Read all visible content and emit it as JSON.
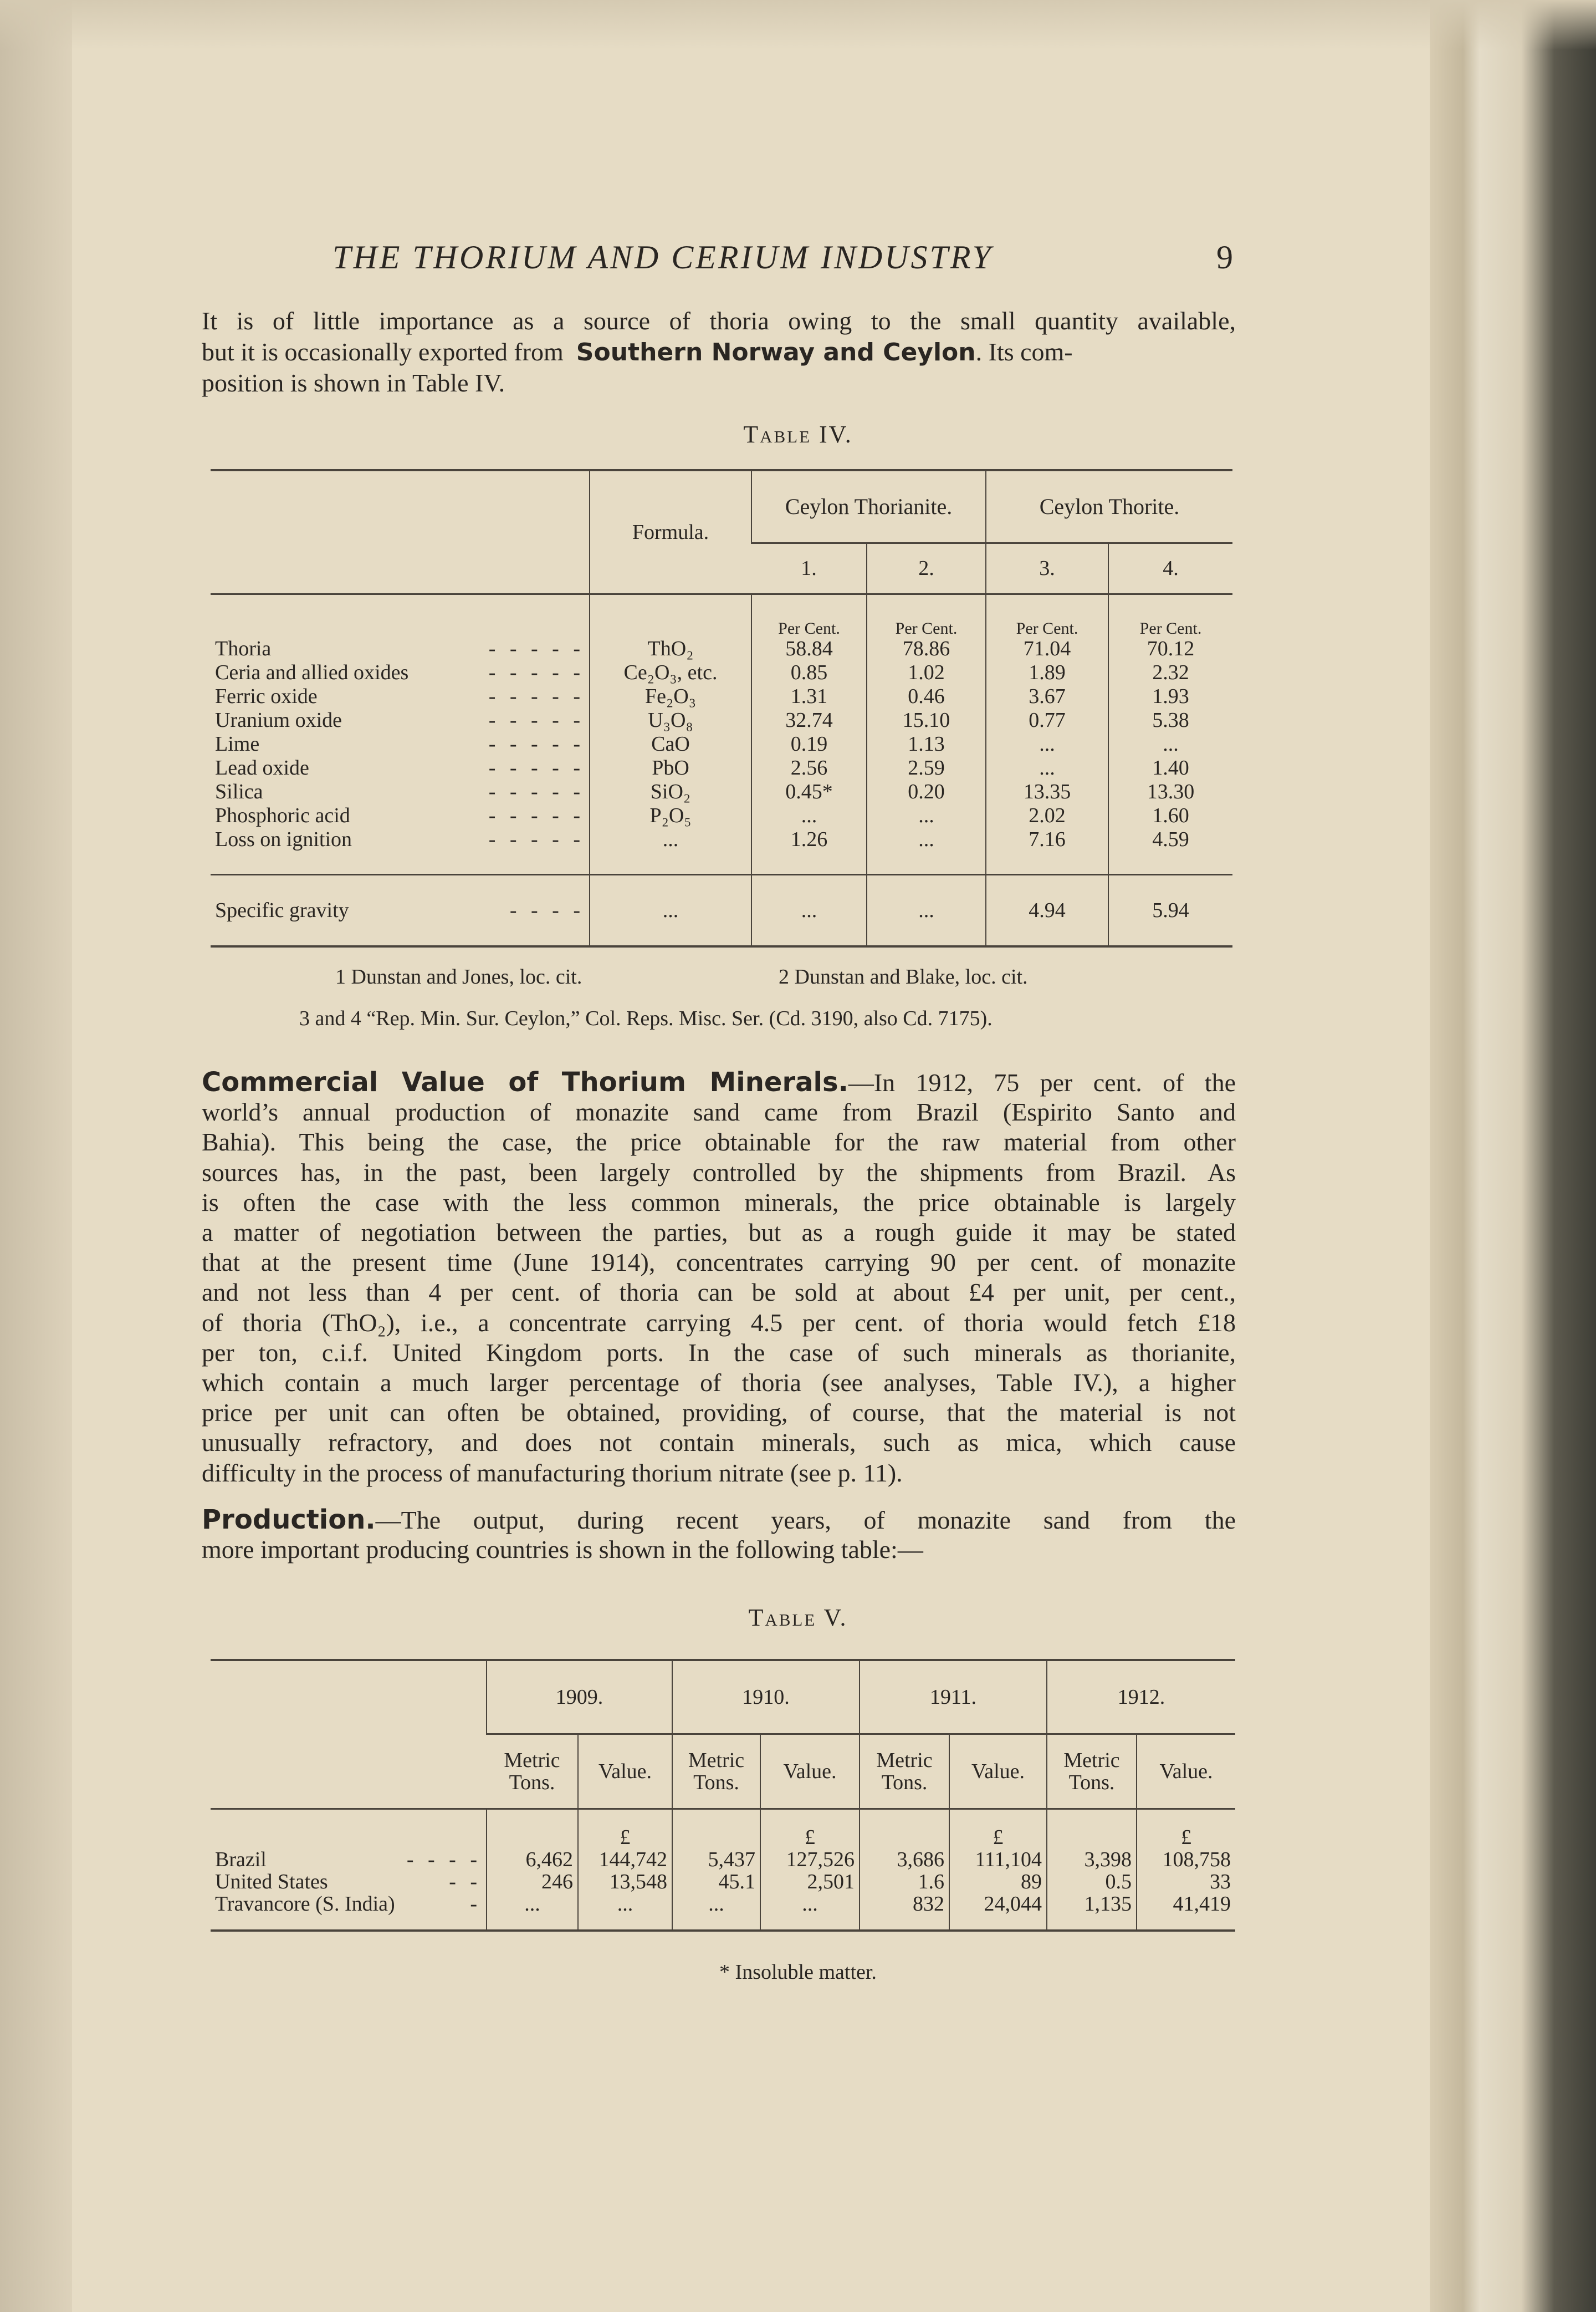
{
  "header": {
    "title": "THE THORIUM AND CERIUM INDUSTRY",
    "page_number": "9"
  },
  "intro": {
    "line1": "It is of little importance as a source of thoria owing to the small quantity available,",
    "line2_a": "but it is occasionally exported from",
    "line2_b": "Southern Norway and Ceylon",
    "line2_c": ". Its com-",
    "line3": "position is shown in Table IV."
  },
  "table4": {
    "caption": "Table IV.",
    "formula_header": "Formula.",
    "group_headers": [
      "Ceylon Thorianite.",
      "Ceylon Thorite."
    ],
    "column_numbers": [
      "1.",
      "2.",
      "3.",
      "4."
    ],
    "unit": "Per Cent.",
    "rows": [
      {
        "label": "Thoria",
        "formula": "ThO₂",
        "values": [
          "58.84",
          "78.86",
          "71.04",
          "70.12"
        ]
      },
      {
        "label": "Ceria and allied oxides",
        "formula": "Ce₂O₃, etc.",
        "values": [
          "0.85",
          "1.02",
          "1.89",
          "2.32"
        ]
      },
      {
        "label": "Ferric oxide",
        "formula": "Fe₂O₃",
        "values": [
          "1.31",
          "0.46",
          "3.67",
          "1.93"
        ]
      },
      {
        "label": "Uranium oxide",
        "formula": "U₃O₈",
        "values": [
          "32.74",
          "15.10",
          "0.77",
          "5.38"
        ]
      },
      {
        "label": "Lime",
        "formula": "CaO",
        "values": [
          "0.19",
          "1.13",
          "...",
          "..."
        ]
      },
      {
        "label": "Lead oxide",
        "formula": "PbO",
        "values": [
          "2.56",
          "2.59",
          "...",
          "1.40"
        ]
      },
      {
        "label": "Silica",
        "formula": "SiO₂",
        "values": [
          "0.45*",
          "0.20",
          "13.35",
          "13.30"
        ]
      },
      {
        "label": "Phosphoric acid",
        "formula": "P₂O₅",
        "values": [
          "...",
          "...",
          "2.02",
          "1.60"
        ]
      },
      {
        "label": "Loss on ignition",
        "formula": "...",
        "values": [
          "1.26",
          "...",
          "7.16",
          "4.59"
        ]
      }
    ],
    "gravity": {
      "label": "Specific gravity",
      "formula": "...",
      "values": [
        "...",
        "...",
        "4.94",
        "5.94"
      ]
    }
  },
  "footnotes": {
    "f1": "1 Dunstan and Jones, loc. cit.",
    "f2": "2 Dunstan and Blake, loc. cit.",
    "f3": "3 and 4 “Rep. Min. Sur. Ceylon,” Col. Reps. Misc. Ser. (Cd. 3190, also Cd. 7175)."
  },
  "commercial": {
    "heading": "Commercial Value of Thorium Minerals.",
    "lines": [
      "—In 1912, 75 per cent. of the",
      "world’s annual production of monazite sand came from Brazil (Espirito Santo and",
      "Bahia). This being the case, the price obtainable for the raw material from other",
      "sources has, in the past, been largely controlled by the shipments from Brazil. As",
      "is often the case with the less common minerals, the price obtainable is largely",
      "a matter of negotiation between the parties, but as a rough guide it may be stated",
      "that at the present time (June 1914), concentrates carrying 90 per cent. of monazite",
      "and not less than 4 per cent. of thoria can be sold at about £4 per unit, per cent.,",
      "of thoria (ThO₂), i.e., a concentrate carrying 4.5 per cent. of thoria would fetch £18",
      "per ton, c.i.f. United Kingdom ports. In the case of such minerals as thorianite,",
      "which contain a much larger percentage of thoria (see analyses, Table IV.), a higher",
      "price per unit can often be obtained, providing, of course, that the material is not",
      "unusually refractory, and does not contain minerals, such as mica, which cause",
      "difficulty in the process of manufacturing thorium nitrate (see p. 11)."
    ]
  },
  "production": {
    "heading": "Production.",
    "lines": [
      "—The output, during recent years, of monazite sand from the",
      "more important producing countries is shown in the following table:—"
    ]
  },
  "table5": {
    "caption": "Table V.",
    "years": [
      "1909.",
      "1910.",
      "1911.",
      "1912."
    ],
    "sub_tons": "Metric Tons.",
    "sub_value": "Value.",
    "currency": "£",
    "rows": [
      {
        "label": "Brazil",
        "values": [
          "6,462",
          "144,742",
          "5,437",
          "127,526",
          "3,686",
          "111,104",
          "3,398",
          "108,758"
        ]
      },
      {
        "label": "United States",
        "values": [
          "246",
          "13,548",
          "45.1",
          "2,501",
          "1.6",
          "89",
          "0.5",
          "33"
        ]
      },
      {
        "label": "Travancore (S. India)",
        "values": [
          "...",
          "...",
          "...",
          "...",
          "832",
          "24,044",
          "1,135",
          "41,419"
        ]
      }
    ]
  },
  "table_footnote": "* Insoluble matter."
}
